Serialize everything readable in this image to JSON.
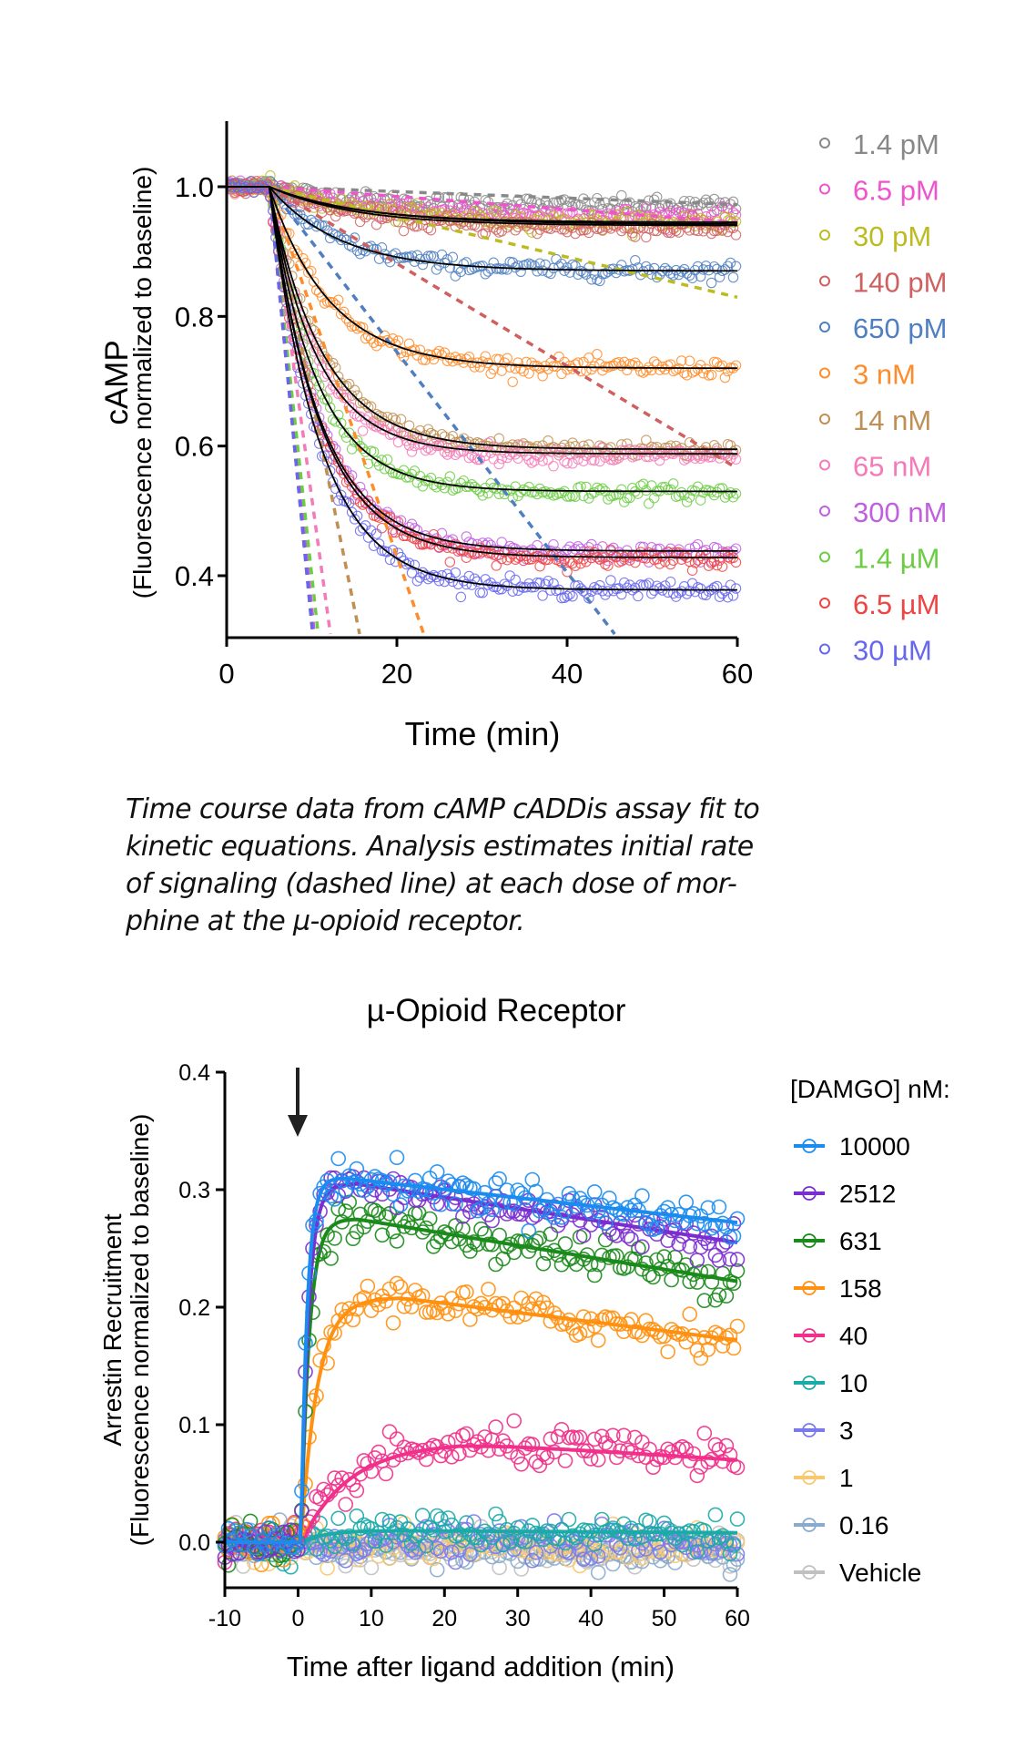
{
  "caption": {
    "lines": [
      "Time course data from cAMP cADDis assay fit to",
      "kinetic equations. Analysis estimates initial rate",
      "of signaling (dashed line) at each dose of mor-",
      "phine at the µ-opioid receptor."
    ]
  },
  "chart_data": [
    {
      "id": "camp",
      "type": "scatter",
      "title": "",
      "xlabel": "Time (min)",
      "ylabel": "cAMP",
      "ylabel_sub": "(Fluorescence normalized to baseline)",
      "xlim": [
        0,
        60
      ],
      "ylim": [
        0.31,
        1.1
      ],
      "xticks": [
        0,
        20,
        40,
        60
      ],
      "yticks": [
        0.4,
        0.6,
        0.8,
        1.0
      ],
      "xtick_labels": [
        "0",
        "20",
        "40",
        "60"
      ],
      "ytick_labels": [
        "0.4",
        "0.6",
        "0.8",
        "1.0"
      ],
      "grid": false,
      "legend_position": "right",
      "ligand_addition_time": 5,
      "fit_line_color": "#000000",
      "series": [
        {
          "name": "1.4  pM",
          "color": "#888888",
          "plateau": 0.97,
          "k": 0.1,
          "initial_slope": -0.0005,
          "fit_plateau": 0.945
        },
        {
          "name": "6.5  pM",
          "color": "#ee55cc",
          "plateau": 0.955,
          "k": 0.1,
          "initial_slope": -0.001,
          "fit_plateau": 0.945
        },
        {
          "name": "30   pM",
          "color": "#bcbc22",
          "plateau": 0.945,
          "k": 0.09,
          "initial_slope": -0.0031,
          "fit_plateau": 0.942
        },
        {
          "name": "140 pM",
          "color": "#d06060",
          "plateau": 0.935,
          "k": 0.1,
          "initial_slope": -0.0079,
          "fit_plateau": 0.94
        },
        {
          "name": "650 pM",
          "color": "#4f7fc0",
          "plateau": 0.87,
          "k": 0.12,
          "initial_slope": -0.017,
          "fit_plateau": 0.87
        },
        {
          "name": "3   nM",
          "color": "#ff8c2a",
          "plateau": 0.72,
          "k": 0.14,
          "initial_slope": -0.038,
          "fit_plateau": 0.72
        },
        {
          "name": "14 nM",
          "color": "#bf8f55",
          "plateau": 0.595,
          "k": 0.16,
          "initial_slope": -0.065,
          "fit_plateau": 0.595
        },
        {
          "name": "65 nM",
          "color": "#f47ab8",
          "plateau": 0.585,
          "k": 0.18,
          "initial_slope": -0.096,
          "fit_plateau": 0.588
        },
        {
          "name": "300 nM",
          "color": "#c060e0",
          "plateau": 0.435,
          "k": 0.17,
          "initial_slope": -0.13,
          "fit_plateau": 0.438
        },
        {
          "name": "1.4 µM",
          "color": "#6ccc44",
          "plateau": 0.528,
          "k": 0.18,
          "initial_slope": -0.12,
          "fit_plateau": 0.53
        },
        {
          "name": "6.5 µM",
          "color": "#ee4444",
          "plateau": 0.425,
          "k": 0.17,
          "initial_slope": -0.135,
          "fit_plateau": 0.428
        },
        {
          "name": "30  µM",
          "color": "#6666ee",
          "plateau": 0.378,
          "k": 0.17,
          "initial_slope": -0.135,
          "fit_plateau": 0.378
        }
      ]
    },
    {
      "id": "arrestin",
      "type": "scatter",
      "title": "µ-Opioid Receptor",
      "xlabel": "Time after ligand addition (min)",
      "ylabel": "Arrestin Recruitment",
      "ylabel_sub": "(Fluorescence normalized to baseline)",
      "xlim": [
        -10,
        60
      ],
      "ylim": [
        -0.04,
        0.4
      ],
      "xticks": [
        -10,
        0,
        10,
        20,
        30,
        40,
        50,
        60
      ],
      "yticks": [
        0.0,
        0.1,
        0.2,
        0.3,
        0.4
      ],
      "xtick_labels": [
        "-10",
        "0",
        "10",
        "20",
        "30",
        "40",
        "50",
        "60"
      ],
      "ytick_labels": [
        "0.0",
        "0.1",
        "0.2",
        "0.3",
        "0.4"
      ],
      "grid": false,
      "legend_title": "[DAMGO] nM:",
      "legend_position": "right",
      "annotation": "ligand addition arrow at t = 0",
      "series": [
        {
          "name": "10000",
          "color": "#1a8cf0",
          "peak": 0.31,
          "end": 0.272,
          "rise_k": 1.2,
          "peak_time": 6
        },
        {
          "name": "2512",
          "color": "#7a2ed0",
          "peak": 0.305,
          "end": 0.255,
          "rise_k": 1.0,
          "peak_time": 8
        },
        {
          "name": "631",
          "color": "#1a8a1a",
          "peak": 0.275,
          "end": 0.222,
          "rise_k": 0.9,
          "peak_time": 8
        },
        {
          "name": "158",
          "color": "#ff9010",
          "peak": 0.208,
          "end": 0.172,
          "rise_k": 0.45,
          "peak_time": 14
        },
        {
          "name": "40",
          "color": "#f0308a",
          "peak": 0.085,
          "end": 0.07,
          "rise_k": 0.15,
          "peak_time": 22
        },
        {
          "name": "10",
          "color": "#1aaaa8",
          "peak": 0.01,
          "end": 0.008,
          "rise_k": 0.3,
          "peak_time": 10
        },
        {
          "name": "3",
          "color": "#7a7aee",
          "peak": 0.0,
          "end": -0.002,
          "rise_k": 0.3,
          "peak_time": 10
        },
        {
          "name": "1",
          "color": "#f8c870",
          "peak": -0.004,
          "end": -0.006,
          "rise_k": 0.3,
          "peak_time": 10
        },
        {
          "name": "0.16",
          "color": "#88aacc",
          "peak": -0.006,
          "end": -0.01,
          "rise_k": 0.3,
          "peak_time": 10
        },
        {
          "name": "Vehicle",
          "color": "#c0c0c0",
          "peak": -0.005,
          "end": -0.008,
          "rise_k": 0.3,
          "peak_time": 10
        }
      ]
    }
  ]
}
